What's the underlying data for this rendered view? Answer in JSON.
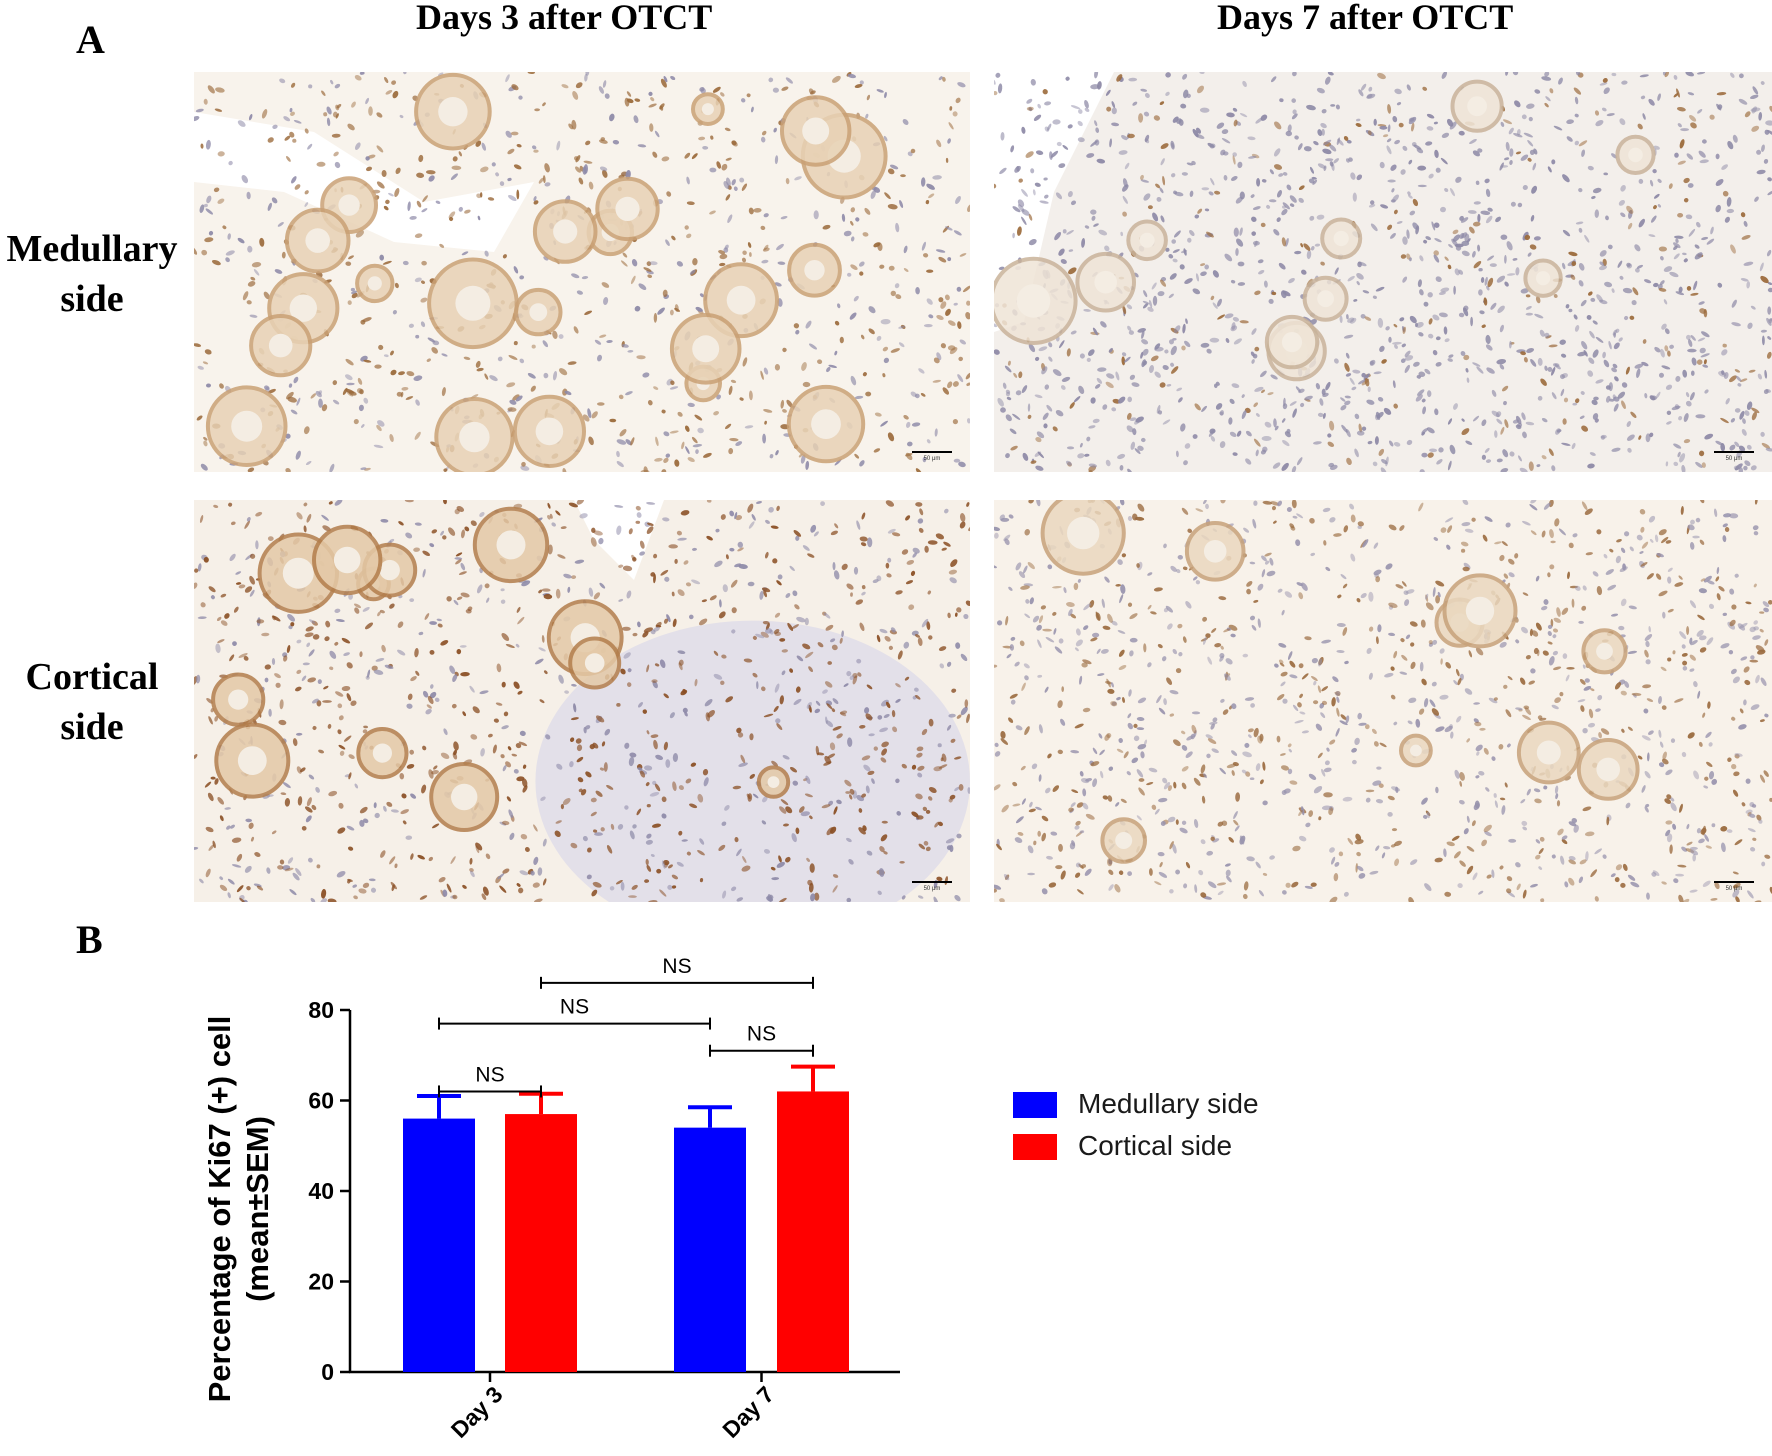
{
  "panel_a": {
    "label": "A",
    "columns": [
      "Days 3 after OTCT",
      "Days 7 after OTCT"
    ],
    "rows": [
      {
        "line1": "Medullary",
        "line2": "side"
      },
      {
        "line1": "Cortical",
        "line2": "side"
      }
    ],
    "scale_bar_text": "50 μm"
  },
  "panel_b": {
    "label": "B"
  },
  "chart_data": {
    "type": "bar",
    "categories": [
      "Day 3",
      "Day 7"
    ],
    "series": [
      {
        "name": "Medullary side",
        "values": [
          56,
          54
        ],
        "sem": [
          5,
          4.5
        ]
      },
      {
        "name": "Cortical side",
        "values": [
          57,
          62
        ],
        "sem": [
          4.5,
          5.5
        ]
      }
    ],
    "ylabel_line1": "Percentage of Ki67 (+) cell",
    "ylabel_line2": "(mean±SEM)",
    "ylim": [
      0,
      80
    ],
    "yticks": [
      0,
      20,
      40,
      60,
      80
    ],
    "colors": {
      "Medullary side": "#0000ff",
      "Cortical side": "#ff0000"
    },
    "significance": [
      {
        "label": "NS",
        "from": "Day 3 Medullary side",
        "to": "Day 3 Cortical side"
      },
      {
        "label": "NS",
        "from": "Day 3 Medullary side",
        "to": "Day 7 Medullary side"
      },
      {
        "label": "NS",
        "from": "Day 3 Cortical side",
        "to": "Day 7 Cortical side"
      },
      {
        "label": "NS",
        "from": "Day 7 Medullary side",
        "to": "Day 7 Cortical side"
      }
    ],
    "legend_position": "right"
  }
}
